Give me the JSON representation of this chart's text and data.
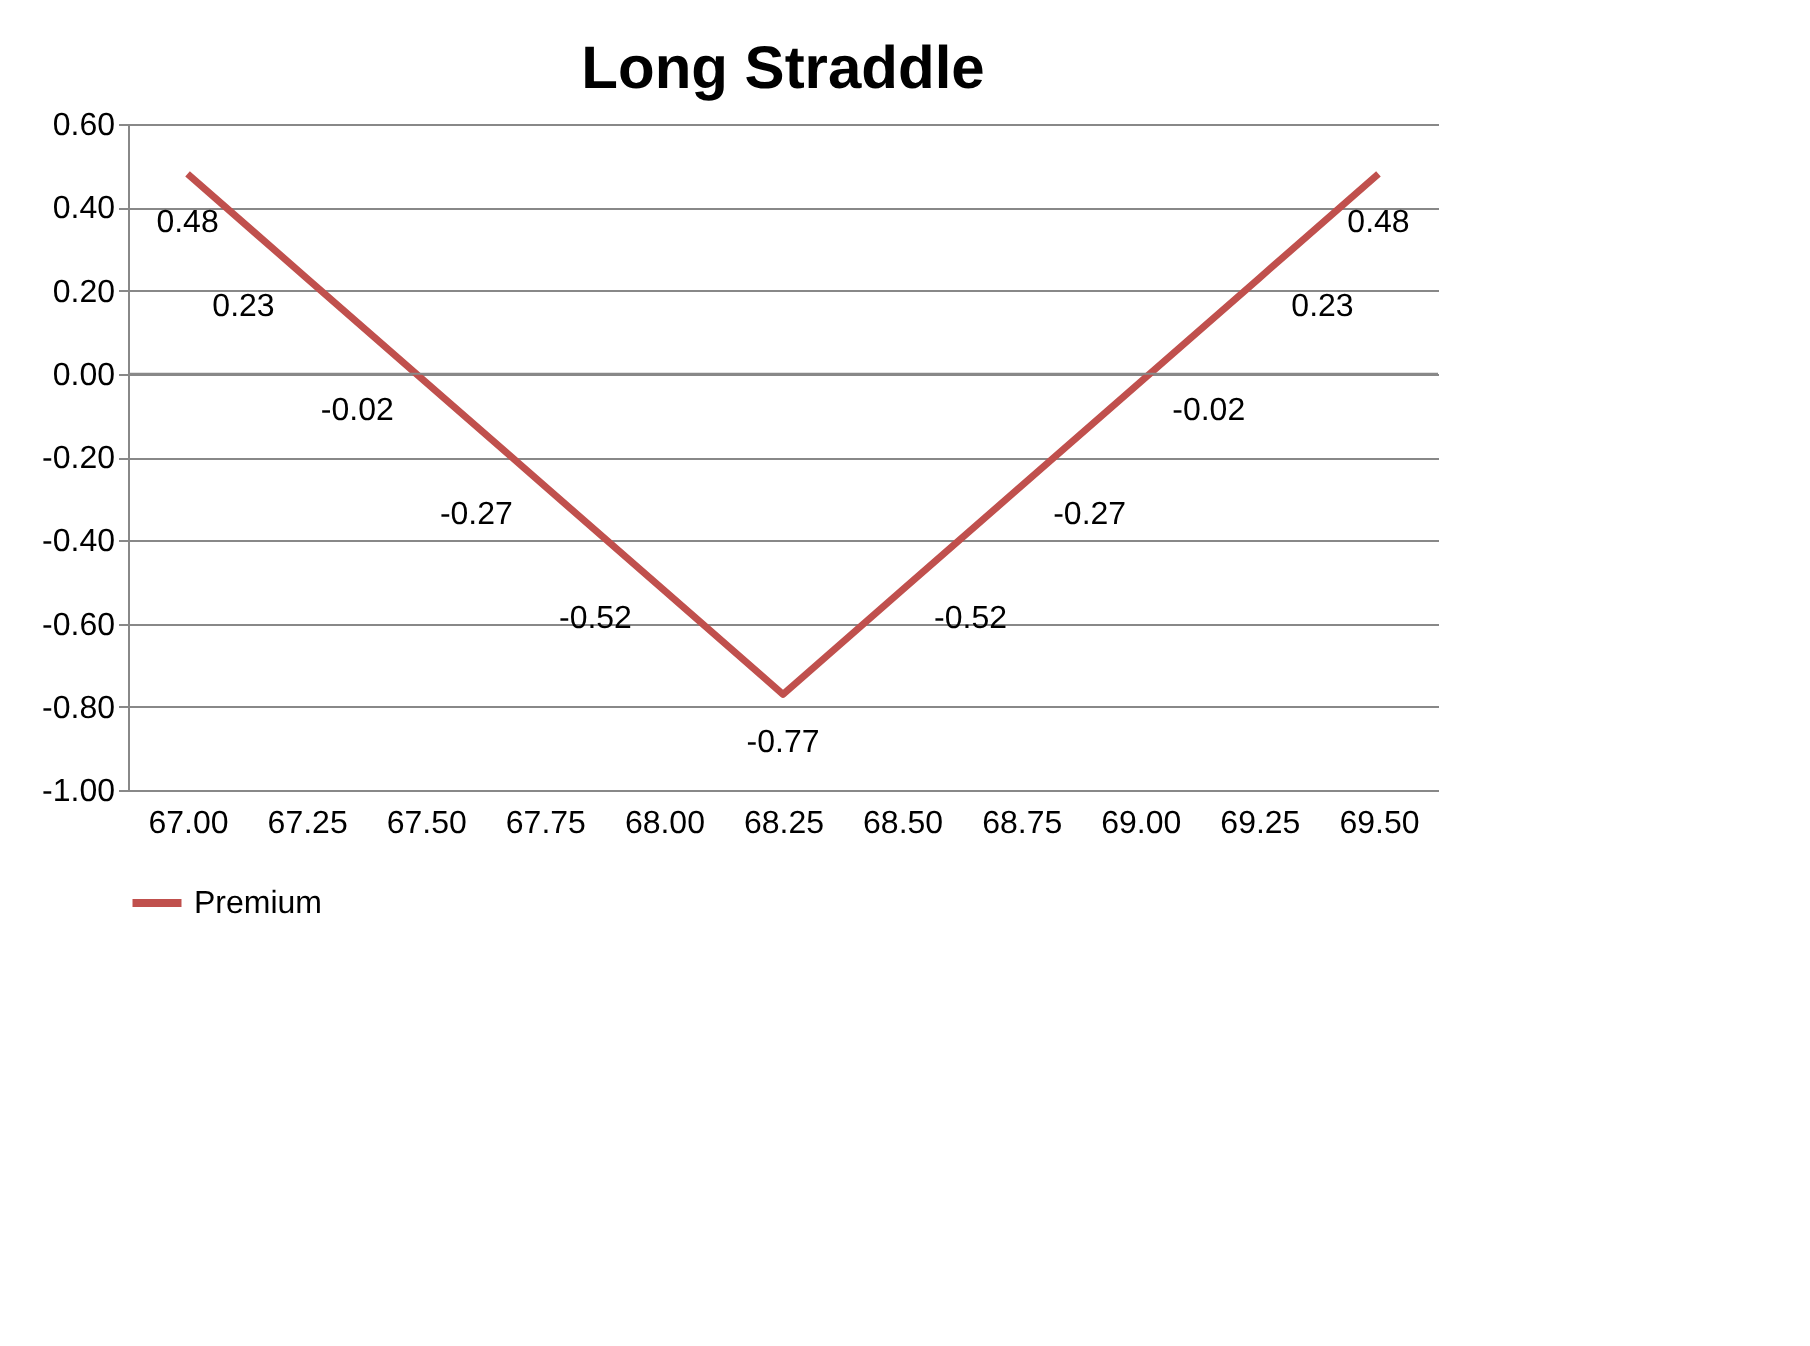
{
  "chart_data": {
    "type": "line",
    "title": "Long Straddle",
    "categories": [
      "67.00",
      "67.25",
      "67.50",
      "67.75",
      "68.00",
      "68.25",
      "68.50",
      "68.75",
      "69.00",
      "69.25",
      "69.50"
    ],
    "series": [
      {
        "name": "Premium",
        "color": "#c0504d",
        "values": [
          0.48,
          0.23,
          -0.02,
          -0.27,
          -0.52,
          -0.77,
          -0.52,
          -0.27,
          -0.02,
          0.23,
          0.48
        ]
      }
    ],
    "ylim": [
      -1.0,
      0.6
    ],
    "yticks": [
      {
        "value": -1.0,
        "label": "-1.00"
      },
      {
        "value": -0.8,
        "label": "-0.80"
      },
      {
        "value": -0.6,
        "label": "-0.60"
      },
      {
        "value": -0.4,
        "label": "-0.40"
      },
      {
        "value": -0.2,
        "label": "-0.20"
      },
      {
        "value": 0,
        "label": "0.00"
      },
      {
        "value": 0.2,
        "label": "0.20"
      },
      {
        "value": 0.4,
        "label": "0.40"
      },
      {
        "value": 0.6,
        "label": "0.60"
      }
    ],
    "grid": "y",
    "legend": "bottom",
    "data_labels": true,
    "marker": "none",
    "line_style": "solid"
  }
}
